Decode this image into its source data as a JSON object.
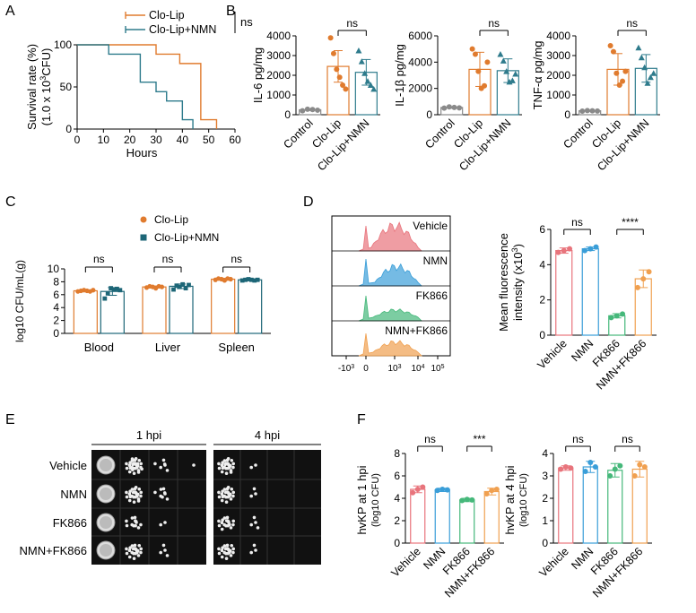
{
  "colors": {
    "clo_lip": "#e07b2e",
    "clo_lip_nmn": "#2e7b8c",
    "control": "#8a8a8a",
    "vehicle": "#e8747c",
    "nmn": "#3a9ed8",
    "fk866": "#45b87a",
    "nmn_fk866": "#f0a050"
  },
  "panels": {
    "A": "A",
    "B": "B",
    "C": "C",
    "D": "D",
    "E": "E",
    "F": "F"
  },
  "chart_data": [
    {
      "id": "A",
      "type": "line",
      "ylabel_line1": "Survival rate (%)",
      "ylabel_line2": "(1.0 x 10",
      "ylabel_sup": "3",
      "ylabel_end": "CFU)",
      "xlabel": "Hours",
      "xlim": [
        0,
        60
      ],
      "ylim": [
        0,
        100
      ],
      "xticks": [
        "0",
        "10",
        "20",
        "30",
        "40",
        "50",
        "60"
      ],
      "yticks": [
        "0",
        "50",
        "100"
      ],
      "significance": "ns",
      "series": [
        {
          "name": "Clo-Lip",
          "x": [
            0,
            30,
            39,
            47,
            53
          ],
          "y": [
            100,
            88.9,
            77.8,
            11.1,
            0
          ]
        },
        {
          "name": "Clo-Lip+NMN",
          "x": [
            0,
            12,
            24,
            30,
            34,
            40,
            44
          ],
          "y": [
            100,
            88.9,
            55.6,
            44.4,
            33.3,
            11.1,
            0
          ]
        }
      ]
    },
    {
      "id": "B1",
      "type": "bar",
      "ylabel": "IL-6 pg/mg",
      "ylim": [
        0,
        4000
      ],
      "yticks": [
        "0",
        "1000",
        "2000",
        "3000",
        "4000"
      ],
      "categories": [
        "Control",
        "Clo-Lip",
        "Clo-Lip+NMN"
      ],
      "values": [
        250,
        2450,
        2150
      ],
      "errors": [
        40,
        800,
        650
      ],
      "significance": "ns",
      "points": [
        [
          200,
          280,
          260,
          230
        ],
        [
          3900,
          3100,
          2300,
          1900,
          1500,
          1300
        ],
        [
          3250,
          2700,
          2100,
          1700,
          1500,
          1300
        ]
      ]
    },
    {
      "id": "B2",
      "type": "bar",
      "ylabel": "IL-1β pg/mg",
      "ylim": [
        0,
        6000
      ],
      "yticks": [
        "0",
        "2000",
        "4000",
        "6000"
      ],
      "categories": [
        "Control",
        "Clo-Lip",
        "Clo-Lip+NMN"
      ],
      "values": [
        550,
        3450,
        3350
      ],
      "errors": [
        60,
        1300,
        900
      ],
      "significance": "ns",
      "points": [
        [
          500,
          600,
          550,
          520
        ],
        [
          5000,
          4600,
          3300,
          2000,
          2200,
          4000
        ],
        [
          4600,
          4100,
          3300,
          2500,
          2600,
          3100
        ]
      ]
    },
    {
      "id": "B3",
      "type": "bar",
      "ylabel": "TNF-α pg/mg",
      "ylim": [
        0,
        4000
      ],
      "yticks": [
        "0",
        "1000",
        "2000",
        "3000",
        "4000"
      ],
      "categories": [
        "Control",
        "Clo-Lip",
        "Clo-Lip+NMN"
      ],
      "values": [
        200,
        2300,
        2350
      ],
      "errors": [
        30,
        800,
        700
      ],
      "significance": "ns",
      "points": [
        [
          180,
          210,
          200,
          190
        ],
        [
          3500,
          3200,
          2100,
          1500,
          1700,
          2200
        ],
        [
          3400,
          2900,
          2400,
          1600,
          1900,
          2100
        ]
      ]
    },
    {
      "id": "C",
      "type": "bar",
      "ylabel": "log10 CFU/mL(g)",
      "ylim": [
        0,
        10
      ],
      "yticks": [
        "0",
        "2",
        "4",
        "6",
        "8",
        "10"
      ],
      "categories": [
        "Blood",
        "Liver",
        "Spleen"
      ],
      "significance": [
        "ns",
        "ns",
        "ns"
      ],
      "series": [
        {
          "name": "Clo-Lip",
          "values": [
            6.6,
            7.2,
            8.4
          ],
          "errors": [
            0.1,
            0.15,
            0.15
          ],
          "points": [
            [
              6.5,
              6.6,
              6.7,
              6.6,
              6.5,
              6.7
            ],
            [
              7.1,
              7.3,
              7.2,
              7.0,
              7.3,
              7.2
            ],
            [
              8.3,
              8.5,
              8.4,
              8.2,
              8.5,
              8.4
            ]
          ]
        },
        {
          "name": "Clo-Lip+NMN",
          "values": [
            6.5,
            7.3,
            8.3
          ],
          "errors": [
            0.6,
            0.35,
            0.1
          ],
          "points": [
            [
              5.4,
              6.2,
              7.0,
              6.8,
              6.9,
              6.7
            ],
            [
              6.8,
              7.4,
              7.2,
              7.6,
              7.0,
              7.5
            ],
            [
              8.2,
              8.3,
              8.4,
              8.3,
              8.2,
              8.3
            ]
          ]
        }
      ]
    },
    {
      "id": "D-hist",
      "type": "area",
      "tracks": [
        "Vehicle",
        "NMN",
        "FK866",
        "NMN+FK866"
      ],
      "xticks": [
        "-10",
        "0",
        "10",
        "10",
        "10"
      ],
      "xtick_sups": [
        "3",
        "",
        "3",
        "4",
        "5"
      ]
    },
    {
      "id": "D-bar",
      "type": "bar",
      "ylabel_line1": "Mean fluorescence",
      "ylabel_line2": "intensity (x10",
      "ylabel_sup": "3",
      "ylabel_end": ")",
      "ylim": [
        0,
        6
      ],
      "yticks": [
        "0",
        "2",
        "4",
        "6"
      ],
      "categories": [
        "Vehicle",
        "NMN",
        "FK866",
        "NMN+FK866"
      ],
      "values": [
        4.8,
        4.9,
        1.1,
        3.2
      ],
      "errors": [
        0.15,
        0.1,
        0.12,
        0.5
      ],
      "sig_pairs": [
        {
          "from": 0,
          "to": 1,
          "label": "ns"
        },
        {
          "from": 2,
          "to": 3,
          "label": "****"
        }
      ],
      "points": [
        [
          4.7,
          4.8,
          4.9
        ],
        [
          4.8,
          4.9,
          5.0
        ],
        [
          1.0,
          1.1,
          1.2
        ],
        [
          2.7,
          3.2,
          3.6
        ]
      ]
    },
    {
      "id": "F1",
      "type": "bar",
      "ylabel_line1": "hvKP at 1 hpi",
      "ylabel_line2": "(log10 CFU)",
      "ylim": [
        0,
        8
      ],
      "yticks": [
        "0",
        "2",
        "4",
        "6",
        "8"
      ],
      "categories": [
        "Vehicle",
        "NMN",
        "FK866",
        "NMN+FK866"
      ],
      "values": [
        4.8,
        4.75,
        3.85,
        4.6
      ],
      "errors": [
        0.3,
        0.15,
        0.15,
        0.3
      ],
      "sig_pairs": [
        {
          "from": 0,
          "to": 1,
          "label": "ns"
        },
        {
          "from": 2,
          "to": 3,
          "label": "***"
        }
      ],
      "points": [
        [
          4.5,
          4.8,
          5.0
        ],
        [
          4.7,
          4.8,
          4.75
        ],
        [
          3.8,
          3.9,
          3.85
        ],
        [
          4.4,
          4.7,
          4.8
        ]
      ]
    },
    {
      "id": "F2",
      "type": "bar",
      "ylabel_line1": "hvKP at 4 hpi",
      "ylabel_line2": "(log10 CFU)",
      "ylim": [
        0,
        4
      ],
      "yticks": [
        "0",
        "1",
        "2",
        "3",
        "4"
      ],
      "categories": [
        "Vehicle",
        "NMN",
        "FK866",
        "NMN+FK866"
      ],
      "values": [
        3.35,
        3.4,
        3.25,
        3.3
      ],
      "errors": [
        0.1,
        0.25,
        0.3,
        0.35
      ],
      "sig_pairs": [
        {
          "from": 0,
          "to": 1,
          "label": "ns"
        },
        {
          "from": 2,
          "to": 3,
          "label": "ns"
        }
      ],
      "points": [
        [
          3.3,
          3.4,
          3.35
        ],
        [
          3.2,
          3.6,
          3.4
        ],
        [
          3.0,
          3.3,
          3.45
        ],
        [
          3.0,
          3.5,
          3.4
        ]
      ]
    }
  ],
  "plate": {
    "groups": [
      "1 hpi",
      "4 hpi"
    ],
    "rows": [
      "Vehicle",
      "NMN",
      "FK866",
      "NMN+FK866"
    ]
  }
}
